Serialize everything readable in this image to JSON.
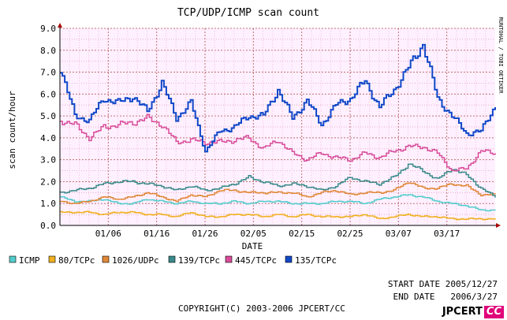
{
  "chart_data": {
    "type": "line",
    "title": "TCP/UDP/ICMP scan count",
    "xlabel": "DATE",
    "ylabel": "scan count/hour",
    "ylim": [
      0,
      9
    ],
    "yticks": [
      "0.0",
      "1.0",
      "2.0",
      "3.0",
      "4.0",
      "5.0",
      "6.0",
      "7.0",
      "8.0",
      "9.0"
    ],
    "x_days": 90,
    "xticks": [
      {
        "label": "01/06",
        "day": 10
      },
      {
        "label": "01/16",
        "day": 20
      },
      {
        "label": "01/26",
        "day": 30
      },
      {
        "label": "02/05",
        "day": 40
      },
      {
        "label": "02/15",
        "day": 50
      },
      {
        "label": "02/25",
        "day": 60
      },
      {
        "label": "03/07",
        "day": 70
      },
      {
        "label": "03/17",
        "day": 80
      }
    ],
    "grid": true,
    "legend_position": "bottom",
    "sample_days": [
      0,
      3,
      6,
      9,
      12,
      15,
      18,
      21,
      24,
      27,
      30,
      33,
      36,
      39,
      42,
      45,
      48,
      51,
      54,
      57,
      60,
      63,
      66,
      69,
      72,
      75,
      78,
      81,
      84,
      87,
      90
    ],
    "series": [
      {
        "name": "ICMP",
        "color": "#55cccc",
        "values": [
          1.3,
          1.1,
          1.1,
          1.2,
          1.0,
          1.0,
          1.2,
          1.1,
          1.0,
          1.1,
          1.0,
          1.0,
          1.1,
          1.0,
          1.1,
          1.1,
          1.0,
          1.0,
          1.0,
          1.1,
          1.1,
          1.0,
          1.2,
          1.3,
          1.4,
          1.3,
          1.1,
          1.0,
          0.9,
          0.7,
          0.7
        ]
      },
      {
        "name": "80/TCPc",
        "color": "#f0b020",
        "values": [
          0.6,
          0.6,
          0.6,
          0.5,
          0.6,
          0.6,
          0.5,
          0.5,
          0.4,
          0.6,
          0.4,
          0.4,
          0.5,
          0.5,
          0.4,
          0.5,
          0.4,
          0.5,
          0.4,
          0.4,
          0.4,
          0.5,
          0.3,
          0.4,
          0.5,
          0.4,
          0.4,
          0.3,
          0.3,
          0.3,
          0.3
        ]
      },
      {
        "name": "1026/UDPc",
        "color": "#e08838",
        "values": [
          1.1,
          1.0,
          1.1,
          1.3,
          1.2,
          1.3,
          1.5,
          1.3,
          1.1,
          1.4,
          1.3,
          1.6,
          1.6,
          1.5,
          1.5,
          1.5,
          1.5,
          1.3,
          1.5,
          1.6,
          1.4,
          1.5,
          1.5,
          1.6,
          2.0,
          1.7,
          1.7,
          1.9,
          1.8,
          1.4,
          1.4
        ]
      },
      {
        "name": "139/TCPc",
        "color": "#3a8a8a",
        "values": [
          1.5,
          1.6,
          1.7,
          1.9,
          2.0,
          2.0,
          1.9,
          1.8,
          1.6,
          1.8,
          1.6,
          1.7,
          1.9,
          2.2,
          2.0,
          1.8,
          1.9,
          1.8,
          1.6,
          1.8,
          2.2,
          2.0,
          1.9,
          2.2,
          2.8,
          2.5,
          2.1,
          2.6,
          2.3,
          1.7,
          1.3
        ]
      },
      {
        "name": "445/TCPc",
        "color": "#d84c9a",
        "values": [
          4.8,
          4.6,
          4.0,
          4.5,
          4.6,
          4.7,
          4.9,
          4.6,
          3.8,
          3.9,
          3.8,
          3.8,
          3.9,
          4.0,
          3.5,
          3.9,
          3.3,
          3.0,
          3.3,
          3.1,
          3.0,
          3.3,
          3.1,
          3.4,
          3.6,
          3.6,
          3.3,
          2.5,
          2.6,
          3.4,
          3.3
        ]
      },
      {
        "name": "135/TCPc",
        "color": "#1048c8",
        "values": [
          7.2,
          5.0,
          4.8,
          5.8,
          5.6,
          5.9,
          5.2,
          6.5,
          4.9,
          5.6,
          3.4,
          4.3,
          4.5,
          5.0,
          5.0,
          6.2,
          4.9,
          5.7,
          4.6,
          5.5,
          5.8,
          6.6,
          5.4,
          6.2,
          7.2,
          8.3,
          5.8,
          5.0,
          4.2,
          4.3,
          5.5
        ]
      }
    ]
  },
  "side_label": "RUNTOHAL / TOBI OETIKER",
  "footer": {
    "start_label": "START DATE",
    "start_value": "2005/12/27",
    "end_label": "END DATE",
    "end_value": "2006/3/27",
    "copyright": "COPYRIGHT(C) 2003-2006 JPCERT/CC",
    "logo_main": "JPCERT",
    "logo_cc": "CC"
  }
}
